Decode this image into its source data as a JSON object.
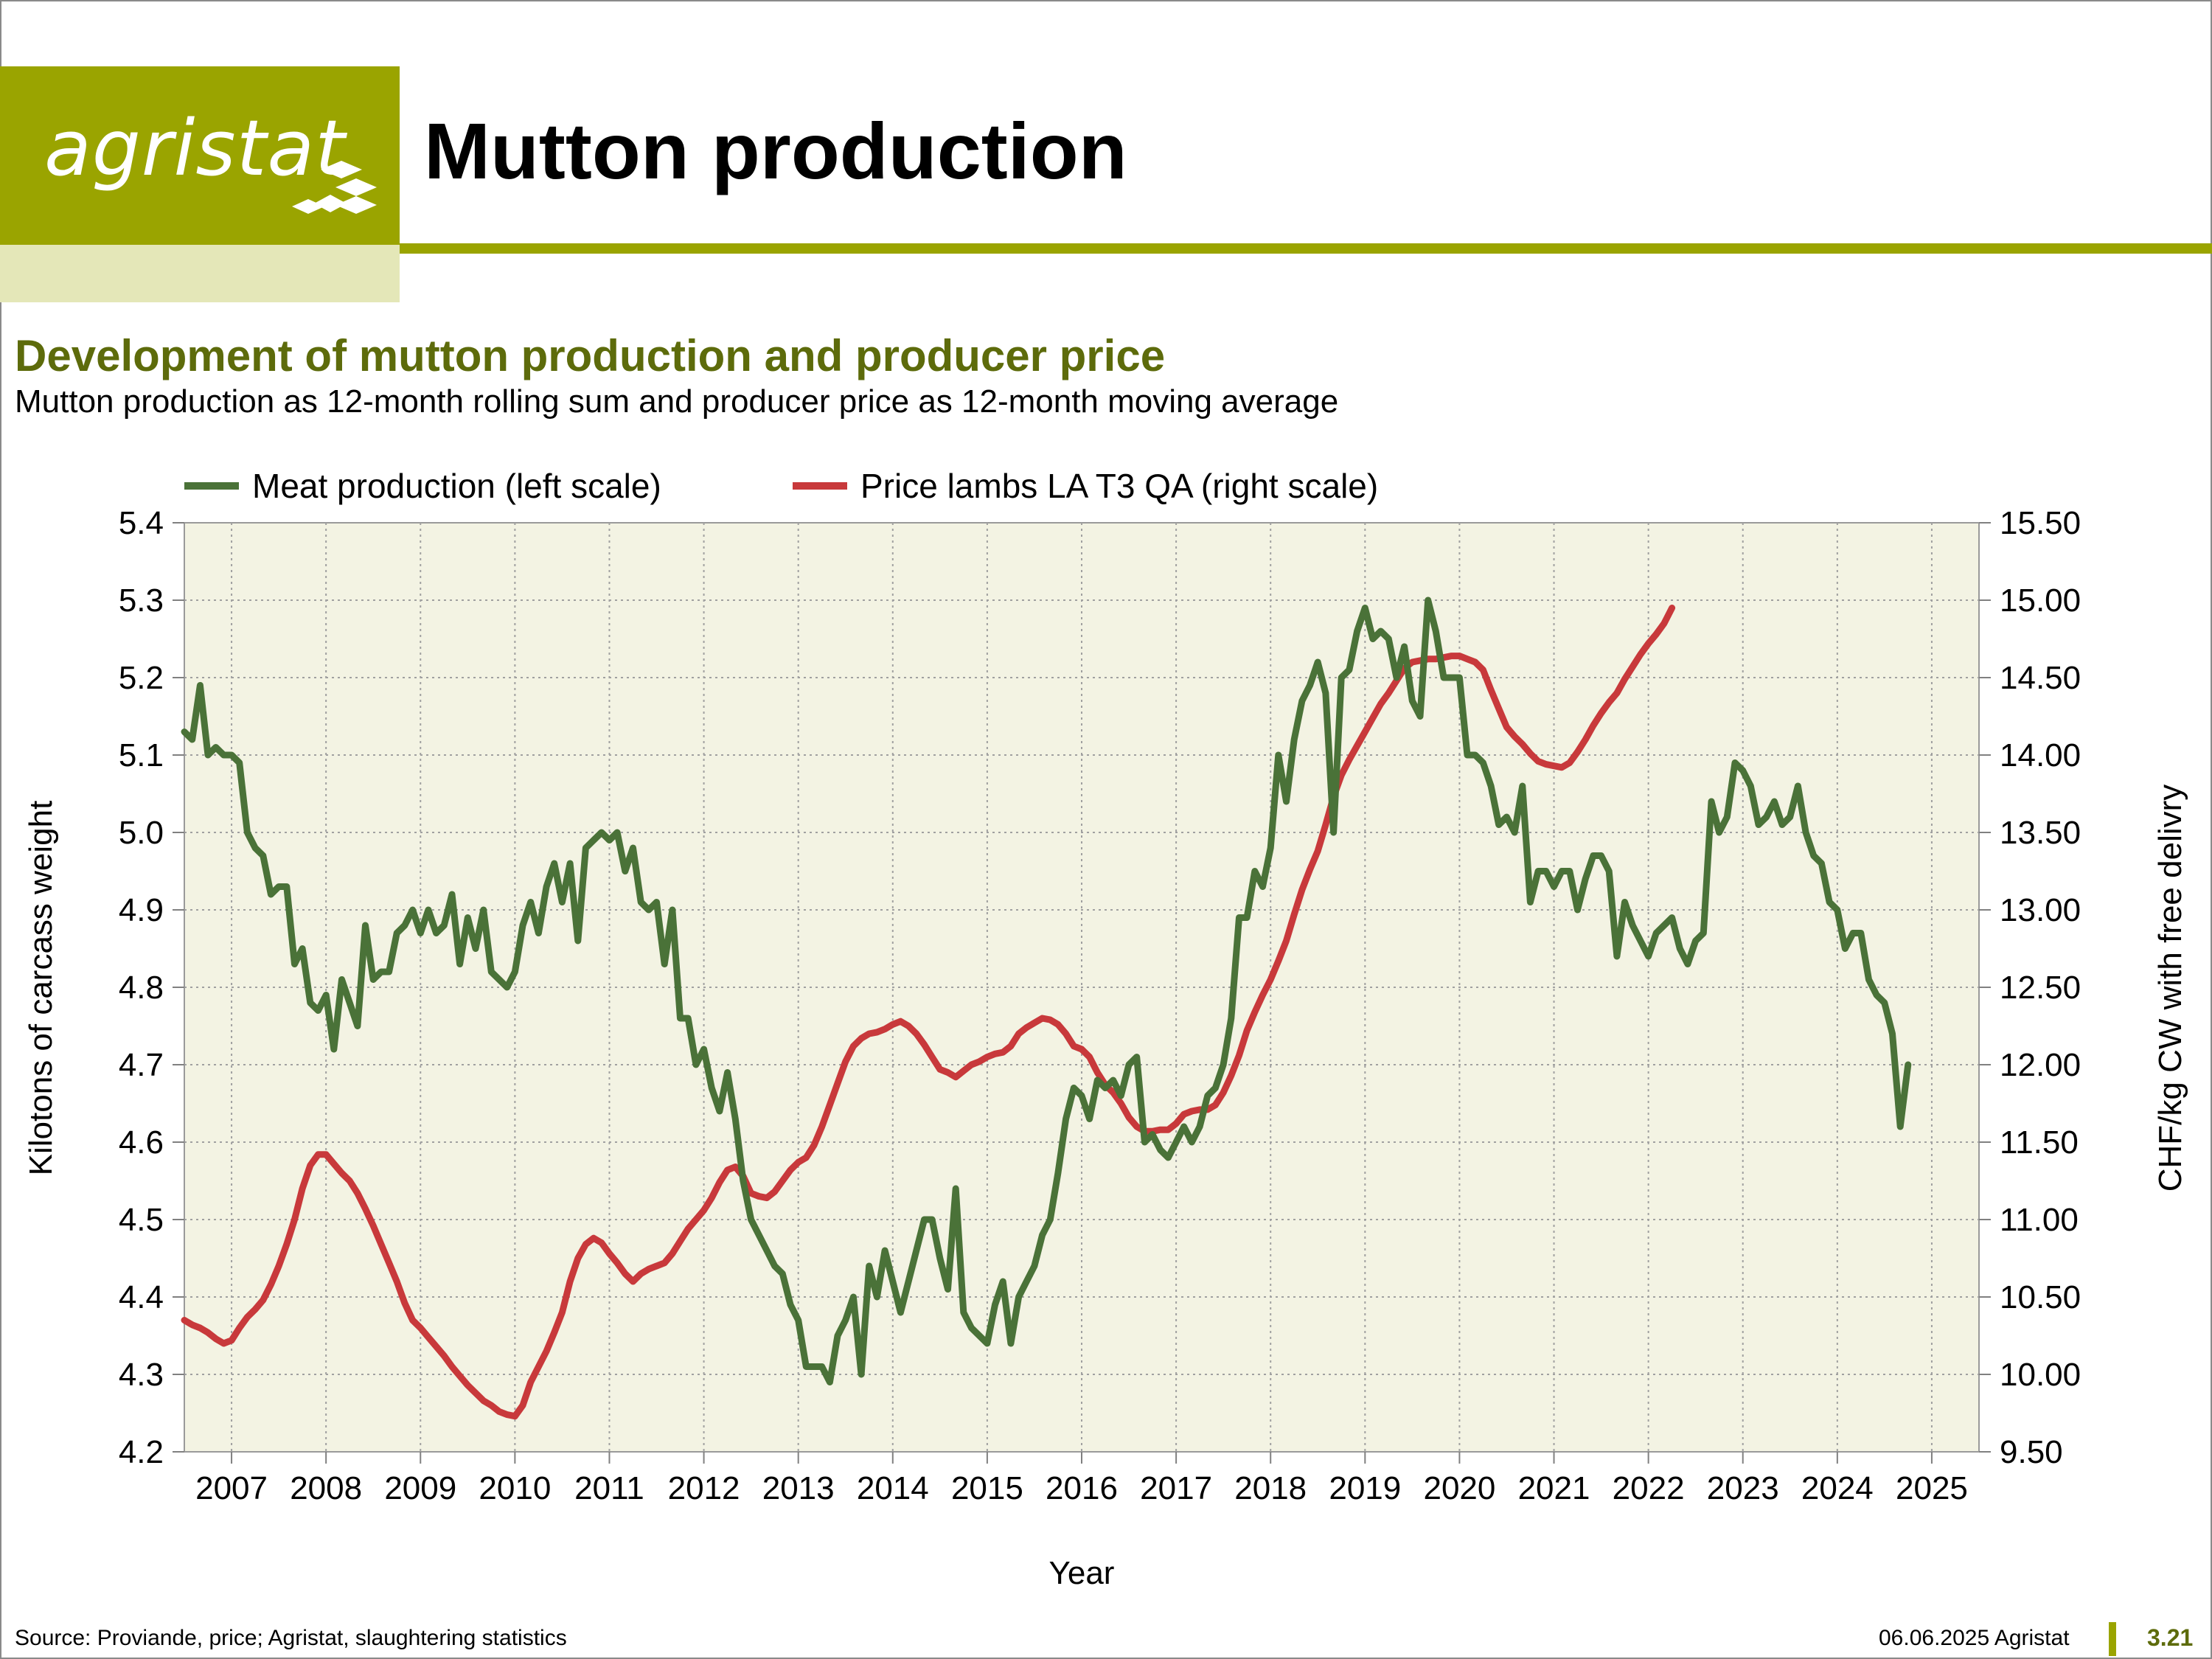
{
  "header": {
    "logo_text": "agristat",
    "title": "Mutton production"
  },
  "subtitle": "Development of mutton production and producer price",
  "description": "Mutton production as 12-month rolling sum and producer price as 12-month moving average",
  "footer": {
    "source": "Source: Proviande, price; Agristat, slaughtering statistics",
    "date": "06.06.2025 Agristat",
    "page_number": "3.21"
  },
  "colors": {
    "brand": "#9aa400",
    "title_green": "#5d6b0b",
    "plot_background": "#f3f3e3",
    "production": "#4a7238",
    "price": "#c8393b"
  },
  "chart_data": {
    "type": "line",
    "xlabel": "Year",
    "ylabel": "Kilotons of carcass weight",
    "y2label": "CHF/kg CW with free delivry",
    "x_ticks": [
      "2007",
      "2008",
      "2009",
      "2010",
      "2011",
      "2012",
      "2013",
      "2014",
      "2015",
      "2016",
      "2017",
      "2018",
      "2019",
      "2020",
      "2021",
      "2022",
      "2023",
      "2024",
      "2025"
    ],
    "x_range": [
      2006.5,
      2025.5
    ],
    "ylim": [
      4.2,
      5.4
    ],
    "y_ticks": [
      "4.2",
      "4.3",
      "4.4",
      "4.5",
      "4.6",
      "4.7",
      "4.8",
      "4.9",
      "5.0",
      "5.1",
      "5.2",
      "5.3",
      "5.4"
    ],
    "y2lim": [
      9.5,
      15.5
    ],
    "y2_ticks": [
      "9.50",
      "10.00",
      "10.50",
      "11.00",
      "11.50",
      "12.00",
      "12.50",
      "13.00",
      "13.50",
      "14.00",
      "14.50",
      "15.00",
      "15.50"
    ],
    "grid": true,
    "legend_position": "top",
    "series": [
      {
        "name": "Meat production (left scale)",
        "axis": "left",
        "x_start": 2006.5,
        "step": 0.08333,
        "values": [
          5.13,
          5.12,
          5.19,
          5.1,
          5.11,
          5.1,
          5.1,
          5.09,
          5.0,
          4.98,
          4.97,
          4.92,
          4.93,
          4.93,
          4.83,
          4.85,
          4.78,
          4.77,
          4.79,
          4.72,
          4.81,
          4.78,
          4.75,
          4.88,
          4.81,
          4.82,
          4.82,
          4.87,
          4.88,
          4.9,
          4.87,
          4.9,
          4.87,
          4.88,
          4.92,
          4.83,
          4.89,
          4.85,
          4.9,
          4.82,
          4.81,
          4.8,
          4.82,
          4.88,
          4.91,
          4.87,
          4.93,
          4.96,
          4.91,
          4.96,
          4.86,
          4.98,
          4.99,
          5.0,
          4.99,
          5.0,
          4.95,
          4.98,
          4.91,
          4.9,
          4.91,
          4.83,
          4.9,
          4.76,
          4.76,
          4.7,
          4.72,
          4.67,
          4.64,
          4.69,
          4.63,
          4.55,
          4.5,
          4.48,
          4.46,
          4.44,
          4.43,
          4.39,
          4.37,
          4.31,
          4.31,
          4.31,
          4.29,
          4.35,
          4.37,
          4.4,
          4.3,
          4.44,
          4.4,
          4.46,
          4.42,
          4.38,
          4.42,
          4.46,
          4.5,
          4.5,
          4.45,
          4.41,
          4.54,
          4.38,
          4.36,
          4.35,
          4.34,
          4.39,
          4.42,
          4.34,
          4.4,
          4.42,
          4.44,
          4.48,
          4.5,
          4.56,
          4.63,
          4.67,
          4.66,
          4.63,
          4.68,
          4.67,
          4.68,
          4.66,
          4.7,
          4.71,
          4.6,
          4.61,
          4.59,
          4.58,
          4.6,
          4.62,
          4.6,
          4.62,
          4.66,
          4.67,
          4.7,
          4.76,
          4.89,
          4.89,
          4.95,
          4.93,
          4.98,
          5.1,
          5.04,
          5.12,
          5.17,
          5.19,
          5.22,
          5.18,
          5.0,
          5.2,
          5.21,
          5.26,
          5.29,
          5.25,
          5.26,
          5.25,
          5.2,
          5.24,
          5.17,
          5.15,
          5.3,
          5.26,
          5.2,
          5.2,
          5.2,
          5.1,
          5.1,
          5.09,
          5.06,
          5.01,
          5.02,
          5.0,
          5.06,
          4.91,
          4.95,
          4.95,
          4.93,
          4.95,
          4.95,
          4.9,
          4.94,
          4.97,
          4.97,
          4.95,
          4.84,
          4.91,
          4.88,
          4.86,
          4.84,
          4.87,
          4.88,
          4.89,
          4.85,
          4.83,
          4.86,
          4.87,
          5.04,
          5.0,
          5.02,
          5.09,
          5.08,
          5.06,
          5.01,
          5.02,
          5.04,
          5.01,
          5.02,
          5.06,
          5.0,
          4.97,
          4.96,
          4.91,
          4.9,
          4.85,
          4.87,
          4.87,
          4.81,
          4.79,
          4.78,
          4.74,
          4.62,
          4.7
        ]
      },
      {
        "name": "Price lambs LA T3 QA (right scale)",
        "axis": "right",
        "x_start": 2006.5,
        "step": 0.08333,
        "values": [
          10.35,
          10.32,
          10.3,
          10.27,
          10.23,
          10.2,
          10.22,
          10.3,
          10.37,
          10.42,
          10.48,
          10.58,
          10.7,
          10.84,
          11.0,
          11.2,
          11.35,
          11.42,
          11.42,
          11.36,
          11.3,
          11.25,
          11.17,
          11.07,
          10.96,
          10.84,
          10.72,
          10.6,
          10.46,
          10.35,
          10.3,
          10.24,
          10.18,
          10.12,
          10.05,
          9.99,
          9.93,
          9.88,
          9.83,
          9.8,
          9.76,
          9.74,
          9.73,
          9.8,
          9.95,
          10.05,
          10.15,
          10.27,
          10.4,
          10.6,
          10.75,
          10.84,
          10.88,
          10.85,
          10.78,
          10.72,
          10.65,
          10.6,
          10.65,
          10.68,
          10.7,
          10.72,
          10.78,
          10.86,
          10.94,
          11.0,
          11.06,
          11.14,
          11.24,
          11.32,
          11.34,
          11.28,
          11.17,
          11.15,
          11.14,
          11.18,
          11.25,
          11.32,
          11.37,
          11.4,
          11.48,
          11.6,
          11.74,
          11.88,
          12.02,
          12.12,
          12.17,
          12.2,
          12.21,
          12.23,
          12.26,
          12.28,
          12.25,
          12.2,
          12.13,
          12.05,
          11.97,
          11.95,
          11.92,
          11.96,
          12.0,
          12.02,
          12.05,
          12.07,
          12.08,
          12.12,
          12.2,
          12.24,
          12.27,
          12.3,
          12.29,
          12.26,
          12.2,
          12.12,
          12.1,
          12.05,
          11.95,
          11.87,
          11.82,
          11.75,
          11.66,
          11.6,
          11.57,
          11.57,
          11.58,
          11.58,
          11.62,
          11.68,
          11.7,
          11.71,
          11.71,
          11.74,
          11.82,
          11.93,
          12.06,
          12.22,
          12.34,
          12.45,
          12.55,
          12.67,
          12.8,
          12.97,
          13.13,
          13.26,
          13.38,
          13.55,
          13.73,
          13.87,
          13.97,
          14.06,
          14.15,
          14.24,
          14.33,
          14.4,
          14.48,
          14.56,
          14.6,
          14.61,
          14.62,
          14.62,
          14.63,
          14.64,
          14.64,
          14.62,
          14.6,
          14.55,
          14.42,
          14.3,
          14.18,
          14.12,
          14.07,
          14.01,
          13.96,
          13.94,
          13.93,
          13.92,
          13.95,
          14.02,
          14.1,
          14.19,
          14.27,
          14.34,
          14.4,
          14.49,
          14.57,
          14.65,
          14.72,
          14.78,
          14.85,
          14.95
        ]
      }
    ]
  }
}
